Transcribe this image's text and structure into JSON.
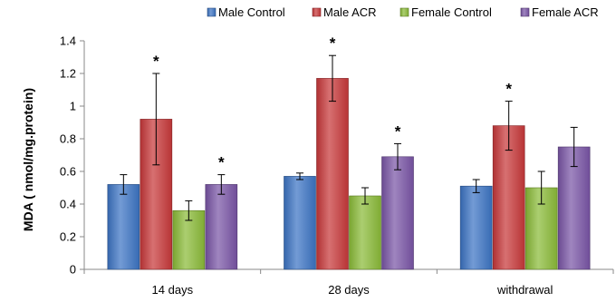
{
  "chart_data": {
    "type": "bar",
    "title": "",
    "xlabel": "",
    "ylabel": "MDA ( nmol/mg.protein)",
    "ylim": [
      0,
      1.4
    ],
    "yticks": [
      "0",
      "0.2",
      "0.4",
      "0.6",
      "0.8",
      "1",
      "1.2",
      "1.4"
    ],
    "grid": false,
    "legend_position": "top",
    "categories": [
      "14 days",
      "28 days",
      "withdrawal"
    ],
    "series": [
      {
        "name": "Male Control",
        "color": "#3c74c4",
        "values": [
          0.52,
          0.57,
          0.51
        ],
        "errors": [
          0.06,
          0.02,
          0.04
        ],
        "significant": [
          false,
          false,
          false
        ]
      },
      {
        "name": "Male ACR",
        "color": "#c8383a",
        "values": [
          0.92,
          1.17,
          0.88
        ],
        "errors": [
          0.28,
          0.14,
          0.15
        ],
        "significant": [
          true,
          true,
          true
        ]
      },
      {
        "name": "Female Control",
        "color": "#8bbb38",
        "values": [
          0.36,
          0.45,
          0.5
        ],
        "errors": [
          0.06,
          0.05,
          0.1
        ],
        "significant": [
          false,
          false,
          false
        ]
      },
      {
        "name": "Female ACR",
        "color": "#7a55a6",
        "values": [
          0.52,
          0.69,
          0.75
        ],
        "errors": [
          0.06,
          0.08,
          0.12
        ],
        "significant": [
          true,
          true,
          false
        ]
      }
    ],
    "significance_marker": "*"
  }
}
